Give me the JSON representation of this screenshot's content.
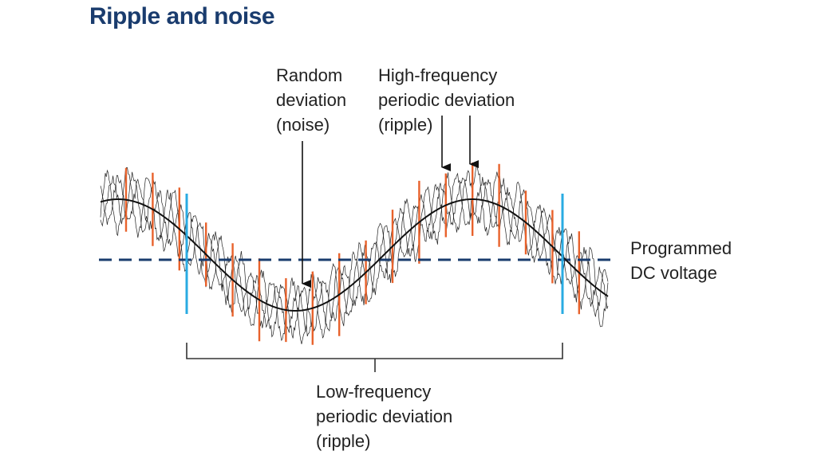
{
  "title": "Ripple and noise",
  "annotations": {
    "noise": [
      "Random",
      "deviation",
      "(noise)"
    ],
    "high_frequency": [
      "High-frequency",
      "periodic deviation",
      "(ripple)"
    ],
    "dc_voltage": [
      "Programmed",
      "DC voltage"
    ],
    "low_frequency": [
      "Low-frequency",
      "periodic deviation",
      "(ripple)"
    ]
  },
  "colors": {
    "title": "#1a3c6e",
    "dc_line": "#1a3c6e",
    "high_frequency_marker": "#e8622c",
    "low_frequency_marker": "#29abe2",
    "waveform": "#111111"
  }
}
